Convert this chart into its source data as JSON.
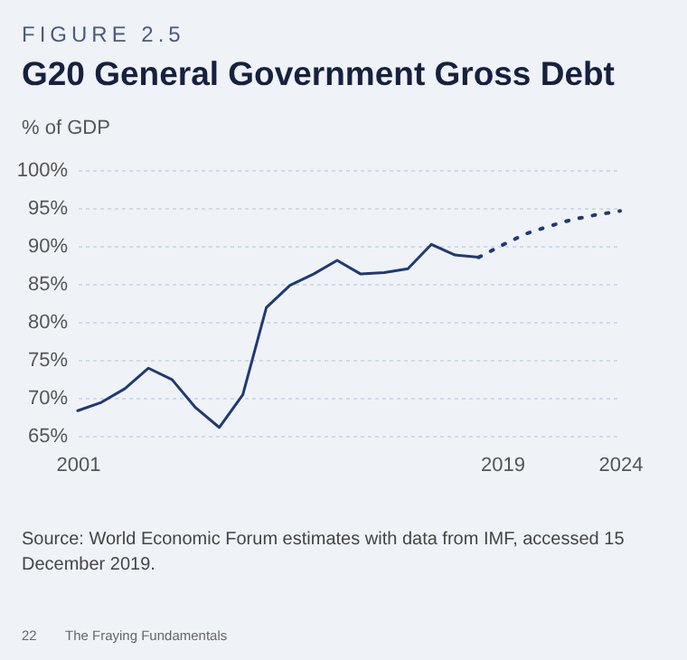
{
  "chart_data": {
    "type": "line",
    "subtitle": "FIGURE 2.5",
    "title": "G20 General Government Gross Debt",
    "ylabel": "% of GDP",
    "series": [
      {
        "color": "#1f3a73",
        "line_style": "solid",
        "x": [
          2001,
          2002,
          2003,
          2004,
          2005,
          2006,
          2007,
          2008,
          2009,
          2010,
          2011,
          2012,
          2013,
          2014,
          2015,
          2016,
          2017,
          2018
        ],
        "values": [
          68.3,
          69.4,
          71.2,
          73.9,
          72.4,
          68.7,
          66.1,
          70.4,
          81.9,
          84.8,
          86.3,
          88.1,
          86.3,
          86.5,
          87.0,
          90.2,
          88.8,
          88.5
        ]
      },
      {
        "color": "#1f3a73",
        "line_style": "dotted",
        "x": [
          2018,
          2019,
          2020,
          2021,
          2022,
          2023,
          2024
        ],
        "values": [
          88.5,
          90.1,
          91.6,
          92.6,
          93.5,
          94.1,
          94.6
        ]
      }
    ],
    "xlim": [
      2001,
      2024
    ],
    "xticks": [
      2001,
      2019,
      2024
    ],
    "ylim": [
      65,
      100
    ],
    "yticks": [
      {
        "value": 65,
        "label": "65%"
      },
      {
        "value": 70,
        "label": "70%"
      },
      {
        "value": 75,
        "label": "75%"
      },
      {
        "value": 80,
        "label": "80%"
      },
      {
        "value": 85,
        "label": "85%"
      },
      {
        "value": 90,
        "label": "90%"
      },
      {
        "value": 95,
        "label": "95%"
      },
      {
        "value": 100,
        "label": "100%"
      }
    ],
    "grid": "y",
    "annotations": [
      "Source: World Economic Forum estimates with data from IMF, accessed 15 December 2019.",
      "22",
      "The Fraying Fundamentals"
    ]
  }
}
